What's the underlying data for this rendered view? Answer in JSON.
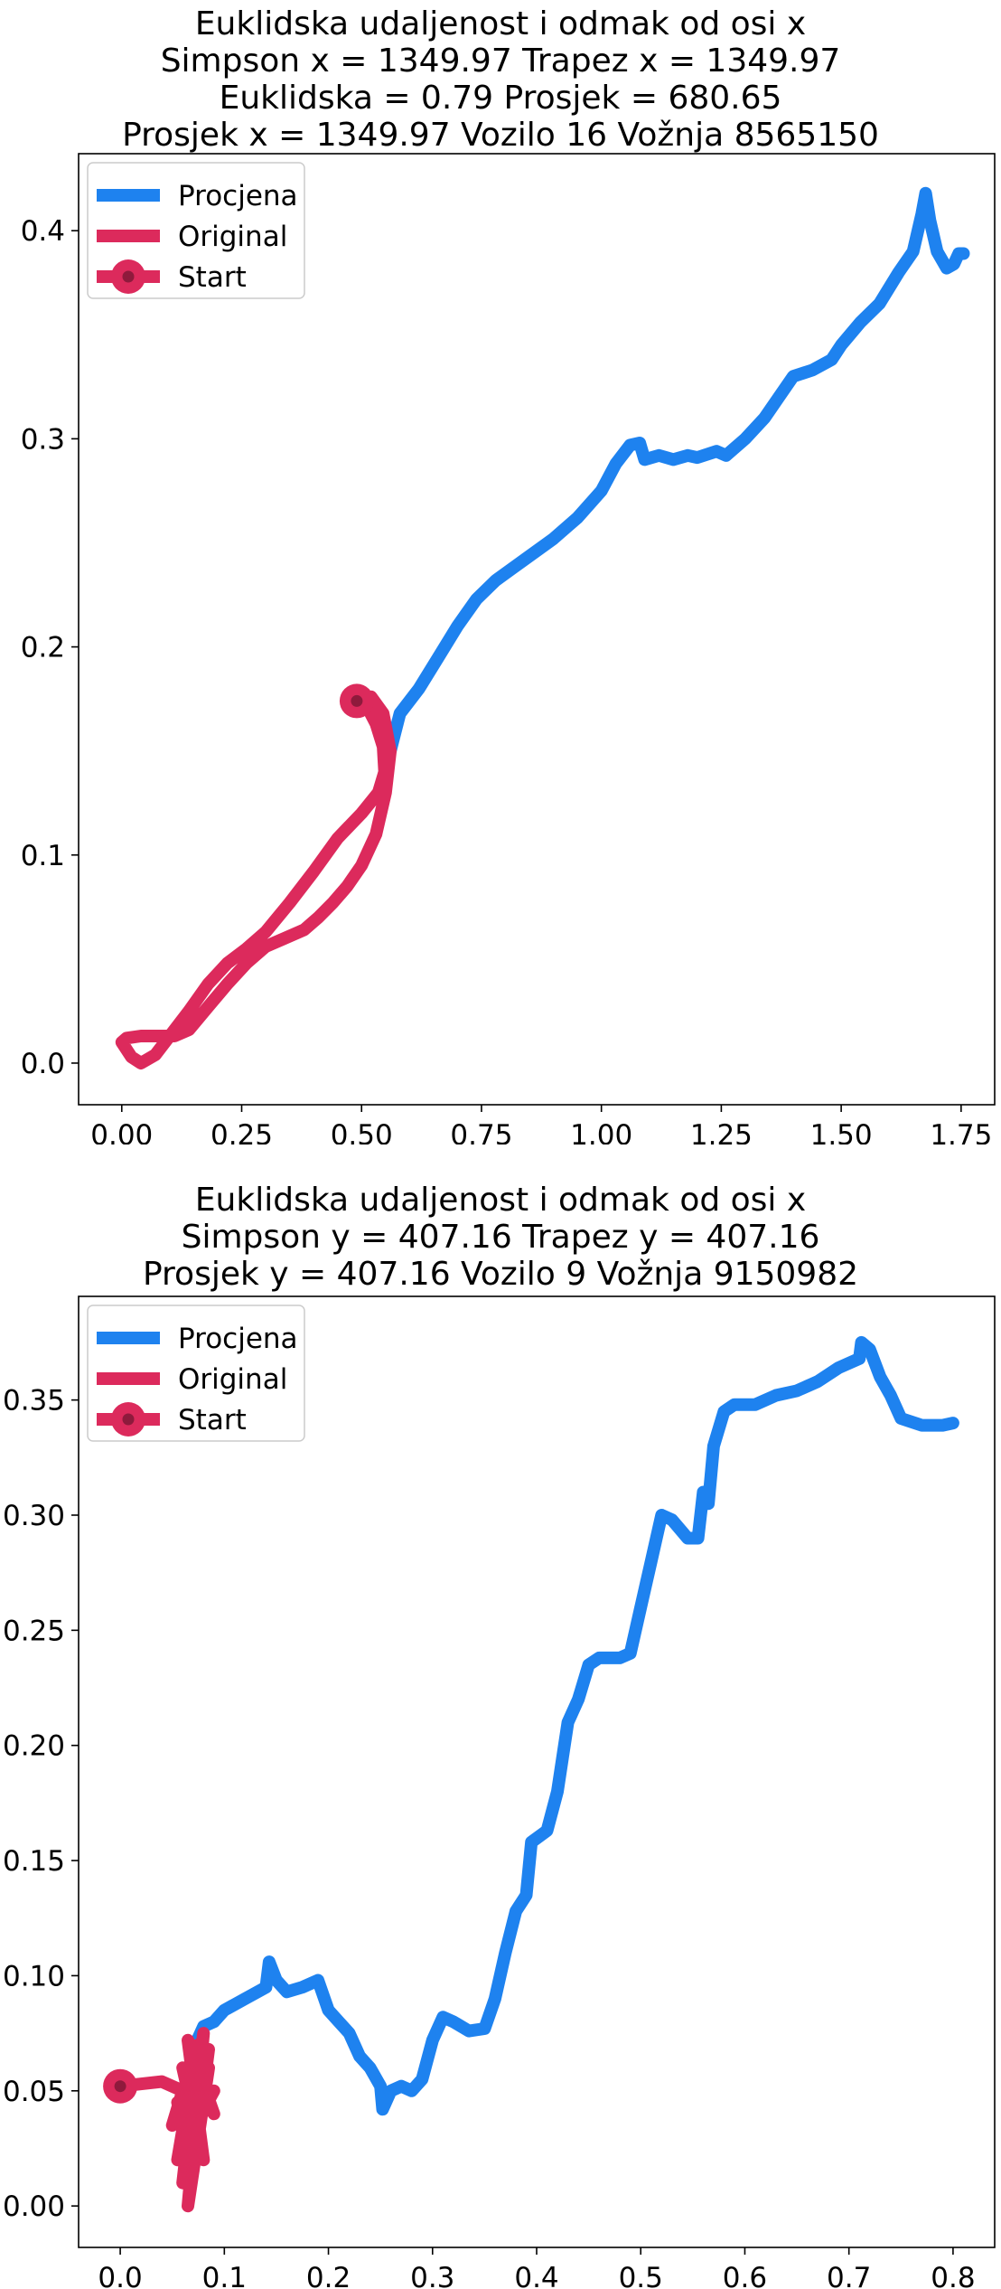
{
  "chart_data": [
    {
      "type": "line",
      "title_lines": [
        "Euklidska udaljenost i odmak od osi x",
        "Simpson x = 1349.97 Trapez x = 1349.97",
        "Euklidska = 0.79 Prosjek = 680.65",
        "Prosjek x = 1349.97 Vozilo 16 Vožnja 8565150"
      ],
      "xlim": [
        -0.09,
        1.82
      ],
      "ylim": [
        -0.02,
        0.437
      ],
      "xticks": [
        0.0,
        0.25,
        0.5,
        0.75,
        1.0,
        1.25,
        1.5,
        1.75
      ],
      "xtick_labels": [
        "0.00",
        "0.25",
        "0.50",
        "0.75",
        "1.00",
        "1.25",
        "1.50",
        "1.75"
      ],
      "yticks": [
        0.0,
        0.1,
        0.2,
        0.3,
        0.4
      ],
      "ytick_labels": [
        "0.0",
        "0.1",
        "0.2",
        "0.3",
        "0.4"
      ],
      "legend_position": "top-left",
      "legend": [
        {
          "label": "Procjena",
          "kind": "line",
          "color": "#1e82ef"
        },
        {
          "label": "Original",
          "kind": "line",
          "color": "#dc2a5c"
        },
        {
          "label": "Start",
          "kind": "marker",
          "color": "#dc2a5c"
        }
      ],
      "series": [
        {
          "name": "Procjena",
          "color": "#1e82ef",
          "points": [
            [
              0.56,
              0.15
            ],
            [
              0.58,
              0.168
            ],
            [
              0.62,
              0.18
            ],
            [
              0.66,
              0.195
            ],
            [
              0.7,
              0.21
            ],
            [
              0.74,
              0.223
            ],
            [
              0.78,
              0.232
            ],
            [
              0.84,
              0.242
            ],
            [
              0.9,
              0.252
            ],
            [
              0.95,
              0.262
            ],
            [
              1.0,
              0.275
            ],
            [
              1.03,
              0.288
            ],
            [
              1.06,
              0.297
            ],
            [
              1.08,
              0.298
            ],
            [
              1.09,
              0.29
            ],
            [
              1.12,
              0.292
            ],
            [
              1.15,
              0.29
            ],
            [
              1.18,
              0.292
            ],
            [
              1.2,
              0.291
            ],
            [
              1.24,
              0.294
            ],
            [
              1.26,
              0.292
            ],
            [
              1.3,
              0.3
            ],
            [
              1.34,
              0.31
            ],
            [
              1.37,
              0.32
            ],
            [
              1.4,
              0.33
            ],
            [
              1.44,
              0.333
            ],
            [
              1.48,
              0.338
            ],
            [
              1.5,
              0.345
            ],
            [
              1.54,
              0.356
            ],
            [
              1.58,
              0.365
            ],
            [
              1.62,
              0.38
            ],
            [
              1.65,
              0.39
            ],
            [
              1.668,
              0.408
            ],
            [
              1.676,
              0.418
            ],
            [
              1.685,
              0.405
            ],
            [
              1.7,
              0.39
            ],
            [
              1.72,
              0.382
            ],
            [
              1.735,
              0.384
            ],
            [
              1.745,
              0.389
            ],
            [
              1.755,
              0.389
            ]
          ]
        },
        {
          "name": "Original",
          "color": "#dc2a5c",
          "points": [
            [
              0.49,
              0.174
            ],
            [
              0.52,
              0.176
            ],
            [
              0.545,
              0.168
            ],
            [
              0.56,
              0.15
            ],
            [
              0.55,
              0.13
            ],
            [
              0.53,
              0.11
            ],
            [
              0.5,
              0.095
            ],
            [
              0.47,
              0.085
            ],
            [
              0.44,
              0.077
            ],
            [
              0.41,
              0.07
            ],
            [
              0.38,
              0.064
            ],
            [
              0.34,
              0.06
            ],
            [
              0.3,
              0.056
            ],
            [
              0.26,
              0.048
            ],
            [
              0.22,
              0.038
            ],
            [
              0.18,
              0.027
            ],
            [
              0.14,
              0.016
            ],
            [
              0.11,
              0.013
            ],
            [
              0.08,
              0.013
            ],
            [
              0.04,
              0.013
            ],
            [
              0.01,
              0.012
            ],
            [
              0.0,
              0.01
            ],
            [
              0.02,
              0.003
            ],
            [
              0.04,
              0.0
            ],
            [
              0.07,
              0.004
            ],
            [
              0.1,
              0.013
            ],
            [
              0.14,
              0.025
            ],
            [
              0.18,
              0.038
            ],
            [
              0.22,
              0.048
            ],
            [
              0.26,
              0.055
            ],
            [
              0.3,
              0.063
            ],
            [
              0.35,
              0.077
            ],
            [
              0.4,
              0.092
            ],
            [
              0.45,
              0.108
            ],
            [
              0.5,
              0.12
            ],
            [
              0.535,
              0.13
            ],
            [
              0.548,
              0.14
            ],
            [
              0.545,
              0.152
            ],
            [
              0.53,
              0.163
            ],
            [
              0.51,
              0.172
            ],
            [
              0.49,
              0.174
            ]
          ]
        }
      ],
      "start": {
        "x": 0.49,
        "y": 0.174,
        "label": "Start"
      }
    },
    {
      "type": "line",
      "title_lines": [
        "Euklidska udaljenost i odmak od osi x",
        "Simpson y = 407.16 Trapez y = 407.16",
        "Prosjek y = 407.16 Vozilo 9 Vožnja 9150982"
      ],
      "xlim": [
        -0.04,
        0.84
      ],
      "ylim": [
        -0.018,
        0.395
      ],
      "xticks": [
        0.0,
        0.1,
        0.2,
        0.3,
        0.4,
        0.5,
        0.6,
        0.7,
        0.8
      ],
      "xtick_labels": [
        "0.0",
        "0.1",
        "0.2",
        "0.3",
        "0.4",
        "0.5",
        "0.6",
        "0.7",
        "0.8"
      ],
      "yticks": [
        0.0,
        0.05,
        0.1,
        0.15,
        0.2,
        0.25,
        0.3,
        0.35
      ],
      "ytick_labels": [
        "0.00",
        "0.05",
        "0.10",
        "0.15",
        "0.20",
        "0.25",
        "0.30",
        "0.35"
      ],
      "legend_position": "top-left",
      "legend": [
        {
          "label": "Procjena",
          "kind": "line",
          "color": "#1e82ef"
        },
        {
          "label": "Original",
          "kind": "line",
          "color": "#dc2a5c"
        },
        {
          "label": "Start",
          "kind": "marker",
          "color": "#dc2a5c"
        }
      ],
      "series": [
        {
          "name": "Procjena",
          "color": "#1e82ef",
          "points": [
            [
              0.07,
              0.068
            ],
            [
              0.08,
              0.078
            ],
            [
              0.09,
              0.08
            ],
            [
              0.1,
              0.085
            ],
            [
              0.12,
              0.09
            ],
            [
              0.14,
              0.095
            ],
            [
              0.143,
              0.106
            ],
            [
              0.15,
              0.098
            ],
            [
              0.16,
              0.093
            ],
            [
              0.175,
              0.095
            ],
            [
              0.19,
              0.098
            ],
            [
              0.2,
              0.085
            ],
            [
              0.21,
              0.08
            ],
            [
              0.22,
              0.075
            ],
            [
              0.23,
              0.065
            ],
            [
              0.24,
              0.06
            ],
            [
              0.25,
              0.052
            ],
            [
              0.252,
              0.042
            ],
            [
              0.26,
              0.05
            ],
            [
              0.27,
              0.052
            ],
            [
              0.28,
              0.05
            ],
            [
              0.29,
              0.055
            ],
            [
              0.3,
              0.072
            ],
            [
              0.31,
              0.082
            ],
            [
              0.32,
              0.08
            ],
            [
              0.335,
              0.076
            ],
            [
              0.35,
              0.077
            ],
            [
              0.36,
              0.09
            ],
            [
              0.37,
              0.11
            ],
            [
              0.38,
              0.128
            ],
            [
              0.39,
              0.135
            ],
            [
              0.395,
              0.158
            ],
            [
              0.41,
              0.163
            ],
            [
              0.42,
              0.18
            ],
            [
              0.425,
              0.195
            ],
            [
              0.43,
              0.21
            ],
            [
              0.44,
              0.22
            ],
            [
              0.45,
              0.235
            ],
            [
              0.46,
              0.238
            ],
            [
              0.48,
              0.238
            ],
            [
              0.49,
              0.24
            ],
            [
              0.5,
              0.26
            ],
            [
              0.51,
              0.28
            ],
            [
              0.52,
              0.3
            ],
            [
              0.53,
              0.298
            ],
            [
              0.545,
              0.29
            ],
            [
              0.555,
              0.29
            ],
            [
              0.56,
              0.31
            ],
            [
              0.565,
              0.305
            ],
            [
              0.57,
              0.33
            ],
            [
              0.58,
              0.345
            ],
            [
              0.59,
              0.348
            ],
            [
              0.61,
              0.348
            ],
            [
              0.63,
              0.352
            ],
            [
              0.65,
              0.354
            ],
            [
              0.67,
              0.358
            ],
            [
              0.69,
              0.364
            ],
            [
              0.71,
              0.368
            ],
            [
              0.712,
              0.375
            ],
            [
              0.72,
              0.372
            ],
            [
              0.73,
              0.36
            ],
            [
              0.74,
              0.352
            ],
            [
              0.75,
              0.342
            ],
            [
              0.77,
              0.339
            ],
            [
              0.79,
              0.339
            ],
            [
              0.8,
              0.34
            ]
          ]
        },
        {
          "name": "Original",
          "color": "#dc2a5c",
          "points": [
            [
              0.0,
              0.052
            ],
            [
              0.04,
              0.054
            ],
            [
              0.06,
              0.05
            ],
            [
              0.05,
              0.035
            ],
            [
              0.07,
              0.06
            ],
            [
              0.055,
              0.02
            ],
            [
              0.075,
              0.07
            ],
            [
              0.06,
              0.01
            ],
            [
              0.08,
              0.075
            ],
            [
              0.065,
              0.0
            ],
            [
              0.085,
              0.06
            ],
            [
              0.06,
              0.025
            ],
            [
              0.09,
              0.05
            ],
            [
              0.055,
              0.045
            ],
            [
              0.07,
              0.015
            ],
            [
              0.085,
              0.068
            ],
            [
              0.06,
              0.035
            ],
            [
              0.08,
              0.02
            ],
            [
              0.065,
              0.072
            ],
            [
              0.09,
              0.04
            ],
            [
              0.06,
              0.06
            ],
            [
              0.075,
              0.03
            ],
            [
              0.07,
              0.068
            ]
          ]
        }
      ],
      "start": {
        "x": 0.0,
        "y": 0.052,
        "label": "Start"
      }
    }
  ]
}
